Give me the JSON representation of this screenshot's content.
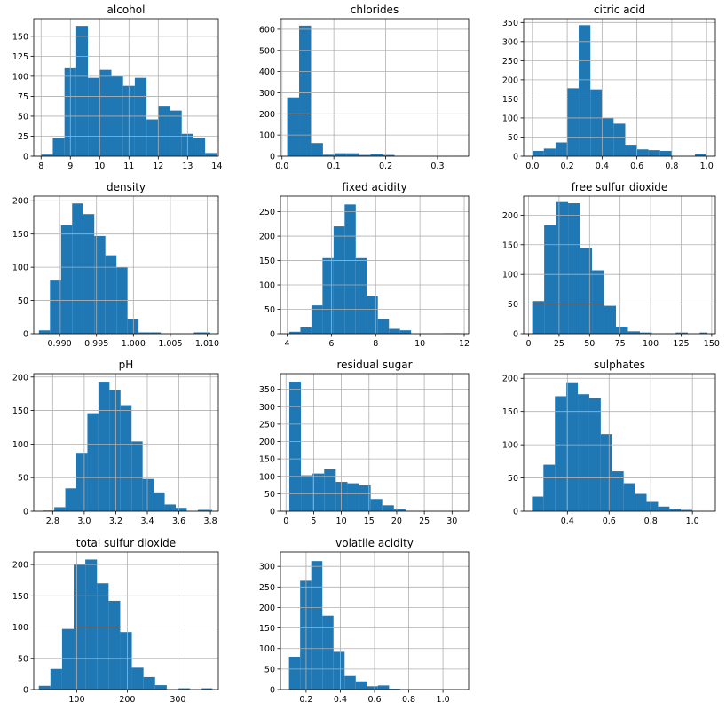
{
  "chart_data": [
    {
      "type": "bar",
      "title": "alcohol",
      "xlim": [
        7.75,
        14.05
      ],
      "ylim": [
        0,
        172
      ],
      "xticks": [
        8,
        9,
        10,
        11,
        12,
        13,
        14
      ],
      "yticks": [
        0,
        25,
        50,
        75,
        100,
        125,
        150
      ],
      "bin_edges": [
        8.0,
        8.4,
        8.8,
        9.2,
        9.6,
        10.0,
        10.4,
        10.8,
        11.2,
        11.6,
        12.0,
        12.4,
        12.8,
        13.2,
        13.6,
        14.0
      ],
      "values": [
        2,
        23,
        110,
        163,
        98,
        108,
        100,
        88,
        98,
        46,
        62,
        57,
        28,
        23,
        4
      ],
      "color": "#1f77b4"
    },
    {
      "type": "bar",
      "title": "chlorides",
      "xlim": [
        -0.003,
        0.36
      ],
      "ylim": [
        0,
        650
      ],
      "xticks": [
        0.0,
        0.1,
        0.2,
        0.3
      ],
      "yticks": [
        0,
        100,
        200,
        300,
        400,
        500,
        600
      ],
      "bin_edges": [
        0.01,
        0.033,
        0.056,
        0.079,
        0.102,
        0.125,
        0.148,
        0.171,
        0.194,
        0.217,
        0.24,
        0.263,
        0.286,
        0.309,
        0.332,
        0.355
      ],
      "values": [
        278,
        617,
        62,
        7,
        14,
        14,
        6,
        10,
        6,
        1,
        0,
        0,
        0,
        0,
        1
      ],
      "color": "#1f77b4"
    },
    {
      "type": "bar",
      "title": "citric acid",
      "xlim": [
        -0.05,
        1.05
      ],
      "ylim": [
        0,
        360
      ],
      "xticks": [
        0.0,
        0.2,
        0.4,
        0.6,
        0.8,
        1.0
      ],
      "yticks": [
        0,
        50,
        100,
        150,
        200,
        250,
        300,
        350
      ],
      "bin_edges": [
        0.0,
        0.066,
        0.133,
        0.2,
        0.266,
        0.333,
        0.4,
        0.466,
        0.533,
        0.6,
        0.666,
        0.733,
        0.8,
        0.866,
        0.933,
        1.0
      ],
      "values": [
        14,
        20,
        36,
        178,
        343,
        175,
        100,
        85,
        30,
        18,
        16,
        14,
        0,
        0,
        5
      ],
      "color": "#1f77b4"
    },
    {
      "type": "bar",
      "title": "density",
      "xlim": [
        0.9865,
        1.0115
      ],
      "ylim": [
        0,
        207
      ],
      "xticks": [
        0.99,
        0.995,
        1.0,
        1.005,
        1.01
      ],
      "yticks": [
        0,
        50,
        100,
        150,
        200
      ],
      "bin_edges": [
        0.9872,
        0.9887,
        0.9902,
        0.9917,
        0.9932,
        0.9947,
        0.9962,
        0.9977,
        0.9992,
        1.0007,
        1.0022,
        1.0037,
        1.0052,
        1.0067,
        1.0082,
        1.0104
      ],
      "values": [
        5,
        80,
        163,
        196,
        180,
        147,
        118,
        100,
        22,
        2,
        2,
        0,
        0,
        0,
        2
      ],
      "color": "#1f77b4"
    },
    {
      "type": "bar",
      "title": "fixed acidity",
      "xlim": [
        3.7,
        12.2
      ],
      "ylim": [
        0,
        282
      ],
      "xticks": [
        4,
        6,
        8,
        10,
        12
      ],
      "yticks": [
        0,
        50,
        100,
        150,
        200,
        250
      ],
      "bin_edges": [
        4.1,
        4.6,
        5.1,
        5.6,
        6.1,
        6.6,
        7.1,
        7.6,
        8.1,
        8.6,
        9.1,
        9.6,
        10.1,
        10.6,
        11.1,
        11.8
      ],
      "values": [
        4,
        13,
        58,
        155,
        220,
        265,
        155,
        78,
        30,
        10,
        7,
        0,
        0,
        0,
        1
      ],
      "color": "#1f77b4"
    },
    {
      "type": "bar",
      "title": "free sulfur dioxide",
      "xlim": [
        -4,
        153
      ],
      "ylim": [
        0,
        232
      ],
      "xticks": [
        0,
        25,
        50,
        75,
        100,
        125,
        150
      ],
      "yticks": [
        0,
        50,
        100,
        150,
        200
      ],
      "bin_edges": [
        3,
        12.8,
        22.6,
        32.4,
        42.2,
        52,
        61.8,
        71.6,
        81.4,
        91.2,
        101,
        110.8,
        120.6,
        130.4,
        140.2,
        146.5
      ],
      "values": [
        55,
        183,
        222,
        220,
        145,
        107,
        47,
        12,
        4,
        2,
        0,
        0,
        2,
        0,
        2
      ],
      "color": "#1f77b4"
    },
    {
      "type": "bar",
      "title": "pH",
      "xlim": [
        2.68,
        3.85
      ],
      "ylim": [
        0,
        205
      ],
      "xticks": [
        2.8,
        3.0,
        3.2,
        3.4,
        3.6,
        3.8
      ],
      "yticks": [
        0,
        50,
        100,
        150,
        200
      ],
      "bin_edges": [
        2.74,
        2.81,
        2.88,
        2.95,
        3.02,
        3.09,
        3.16,
        3.23,
        3.3,
        3.37,
        3.44,
        3.51,
        3.58,
        3.65,
        3.72,
        3.81
      ],
      "values": [
        1,
        6,
        34,
        87,
        146,
        193,
        180,
        158,
        104,
        48,
        28,
        10,
        5,
        0,
        2
      ],
      "color": "#1f77b4"
    },
    {
      "type": "bar",
      "title": "residual sugar",
      "xlim": [
        -1,
        33
      ],
      "ylim": [
        0,
        395
      ],
      "xticks": [
        0,
        5,
        10,
        15,
        20,
        25,
        30
      ],
      "yticks": [
        0,
        50,
        100,
        150,
        200,
        250,
        300,
        350
      ],
      "bin_edges": [
        0.6,
        2.7,
        4.8,
        6.9,
        9.0,
        11.1,
        13.2,
        15.3,
        17.4,
        19.5,
        21.6,
        23.7,
        25.8,
        27.9,
        30.0,
        31.6
      ],
      "values": [
        372,
        103,
        108,
        120,
        84,
        80,
        74,
        35,
        17,
        5,
        0,
        0,
        0,
        0,
        1
      ],
      "color": "#1f77b4"
    },
    {
      "type": "bar",
      "title": "sulphates",
      "xlim": [
        0.19,
        1.11
      ],
      "ylim": [
        0,
        207
      ],
      "xticks": [
        0.4,
        0.6,
        0.8,
        1.0
      ],
      "yticks": [
        0,
        50,
        100,
        150,
        200
      ],
      "bin_edges": [
        0.23,
        0.285,
        0.34,
        0.395,
        0.45,
        0.505,
        0.56,
        0.615,
        0.67,
        0.725,
        0.78,
        0.835,
        0.89,
        0.945,
        1.0,
        1.06
      ],
      "values": [
        22,
        70,
        173,
        194,
        176,
        170,
        116,
        60,
        42,
        26,
        14,
        7,
        4,
        2,
        0
      ],
      "color": "#1f77b4"
    },
    {
      "type": "bar",
      "title": "total sulfur dioxide",
      "xlim": [
        15,
        380
      ],
      "ylim": [
        0,
        220
      ],
      "xticks": [
        100,
        200,
        300
      ],
      "yticks": [
        0,
        50,
        100,
        150,
        200
      ],
      "bin_edges": [
        25,
        48,
        71,
        94,
        117,
        140,
        163,
        186,
        209,
        232,
        255,
        278,
        301,
        324,
        347,
        368
      ],
      "values": [
        6,
        33,
        97,
        200,
        208,
        170,
        142,
        92,
        35,
        20,
        7,
        0,
        2,
        0,
        2
      ],
      "color": "#1f77b4"
    },
    {
      "type": "bar",
      "title": "volatile acidity",
      "xlim": [
        0.05,
        1.15
      ],
      "ylim": [
        0,
        335
      ],
      "xticks": [
        0.2,
        0.4,
        0.6,
        0.8,
        1.0
      ],
      "yticks": [
        0,
        50,
        100,
        150,
        200,
        250,
        300
      ],
      "bin_edges": [
        0.1,
        0.165,
        0.23,
        0.295,
        0.36,
        0.425,
        0.49,
        0.555,
        0.62,
        0.685,
        0.75,
        0.815,
        0.88,
        0.945,
        1.01,
        1.1
      ],
      "values": [
        80,
        265,
        313,
        180,
        92,
        33,
        20,
        8,
        10,
        2,
        1,
        1,
        0,
        0,
        1
      ],
      "color": "#1f77b4"
    }
  ]
}
